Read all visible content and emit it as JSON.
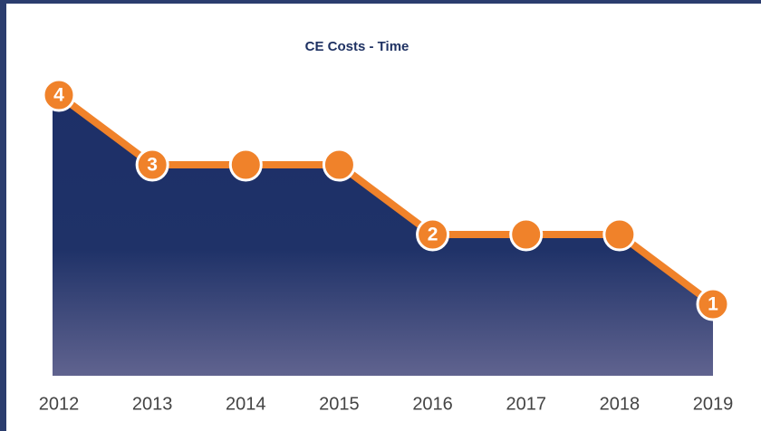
{
  "chart_data": {
    "type": "area",
    "title": "CE Costs - Time",
    "categories": [
      "2012",
      "2013",
      "2014",
      "2015",
      "2016",
      "2017",
      "2018",
      "2019"
    ],
    "values": [
      4,
      3,
      3,
      3,
      2,
      2,
      2,
      1
    ],
    "value_labels": [
      "4",
      "3",
      null,
      null,
      "2",
      null,
      null,
      "1"
    ],
    "color": "#f0822a",
    "ylim": [
      0,
      4
    ]
  }
}
